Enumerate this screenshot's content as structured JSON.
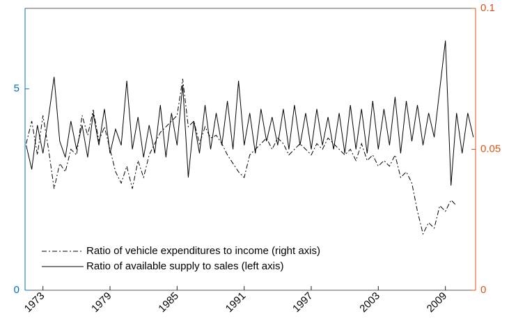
{
  "chart_data": {
    "type": "line",
    "x": [
      1971.5,
      1972,
      1972.5,
      1973,
      1973.5,
      1974,
      1974.5,
      1975,
      1975.5,
      1976,
      1976.5,
      1977,
      1977.5,
      1978,
      1978.5,
      1979,
      1979.5,
      1980,
      1980.5,
      1981,
      1981.5,
      1982,
      1982.5,
      1983,
      1983.5,
      1984,
      1984.5,
      1985,
      1985.5,
      1986,
      1986.5,
      1987,
      1987.5,
      1988,
      1988.5,
      1989,
      1989.5,
      1990,
      1990.5,
      1991,
      1991.5,
      1992,
      1992.5,
      1993,
      1993.5,
      1994,
      1994.5,
      1995,
      1995.5,
      1996,
      1996.5,
      1997,
      1997.5,
      1998,
      1998.5,
      1999,
      1999.5,
      2000,
      2000.5,
      2001,
      2001.5,
      2002,
      2002.5,
      2003,
      2003.5,
      2004,
      2004.5,
      2005,
      2005.5,
      2006,
      2006.5,
      2007,
      2007.5,
      2008,
      2008.5,
      2009,
      2009.5,
      2010,
      2010.5,
      2011,
      2011.5
    ],
    "series": [
      {
        "name": "Ratio of available supply to sales (left axis)",
        "color": "#000000",
        "style": "solid",
        "axis": "y",
        "values": [
          3.6,
          3.0,
          4.1,
          3.4,
          4.3,
          5.3,
          3.7,
          3.3,
          4.2,
          3.5,
          4.1,
          3.3,
          4.4,
          3.6,
          4.5,
          3.4,
          4.0,
          3.6,
          5.2,
          3.5,
          4.3,
          3.3,
          4.1,
          3.4,
          4.6,
          3.3,
          4.4,
          3.6,
          5.1,
          2.8,
          4.2,
          3.4,
          4.6,
          3.5,
          4.4,
          3.6,
          4.7,
          3.5,
          5.2,
          3.6,
          4.4,
          3.4,
          4.5,
          3.7,
          4.3,
          3.6,
          4.5,
          3.5,
          4.6,
          3.6,
          4.4,
          3.5,
          4.5,
          3.6,
          4.3,
          3.5,
          4.4,
          3.4,
          4.6,
          3.5,
          4.5,
          3.4,
          4.7,
          3.5,
          4.5,
          3.6,
          4.8,
          3.4,
          4.7,
          3.7,
          4.6,
          3.6,
          4.4,
          3.8,
          5.0,
          6.2,
          2.6,
          4.4,
          3.4,
          4.4,
          3.8
        ]
      },
      {
        "name": "Ratio of vehicle expenditures to income (right axis)",
        "color": "#000000",
        "style": "dash-dot",
        "axis": "y2",
        "values": [
          0.052,
          0.06,
          0.048,
          0.062,
          0.05,
          0.036,
          0.045,
          0.042,
          0.05,
          0.048,
          0.062,
          0.055,
          0.064,
          0.053,
          0.058,
          0.05,
          0.042,
          0.038,
          0.044,
          0.036,
          0.046,
          0.04,
          0.048,
          0.052,
          0.056,
          0.058,
          0.06,
          0.062,
          0.075,
          0.058,
          0.06,
          0.052,
          0.058,
          0.054,
          0.055,
          0.052,
          0.048,
          0.045,
          0.042,
          0.04,
          0.048,
          0.05,
          0.052,
          0.054,
          0.05,
          0.054,
          0.052,
          0.048,
          0.05,
          0.052,
          0.05,
          0.048,
          0.052,
          0.05,
          0.054,
          0.052,
          0.05,
          0.048,
          0.05,
          0.046,
          0.052,
          0.046,
          0.048,
          0.044,
          0.046,
          0.044,
          0.048,
          0.04,
          0.042,
          0.038,
          0.028,
          0.02,
          0.024,
          0.022,
          0.03,
          0.028,
          0.032,
          0.03,
          null,
          null,
          null
        ]
      }
    ],
    "xlim": [
      1971.4,
      2011.7
    ],
    "xticks": [
      1973,
      1979,
      1985,
      1991,
      1997,
      2003,
      2009
    ],
    "ylim": [
      0,
      7
    ],
    "yticks": [
      0,
      5
    ],
    "y_color": "#0072bd",
    "y2lim": [
      0,
      0.1
    ],
    "y2ticks": [
      0,
      0.05,
      0.1
    ],
    "y2_color": "#d95319",
    "legend": "lower left"
  }
}
